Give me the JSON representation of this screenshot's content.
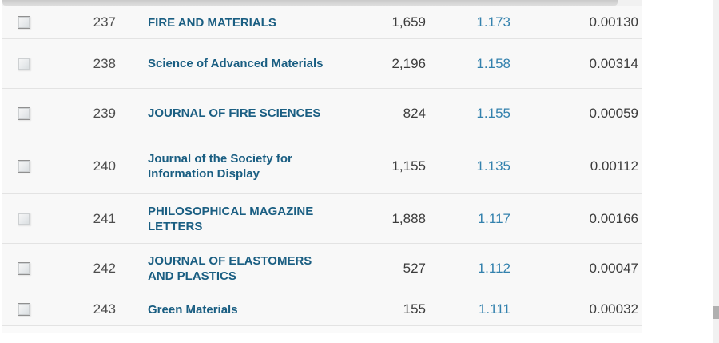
{
  "colors": {
    "title_link": "#1a5e82",
    "impact_link": "#3381ad",
    "row_bg": "#f8f8f8",
    "row_border": "#e3e3e3",
    "value_text": "#3c3c3c",
    "rank_text": "#4d4d4d",
    "scrollbar_track": "#f1f1f1",
    "scrollbar_thumb": "#b0b0b0"
  },
  "journal_table": {
    "rows": [
      {
        "rank": "237",
        "checked": false,
        "title": "FIRE AND MATERIALS",
        "total_cites": "1,659",
        "impact_factor": "1.173",
        "eigenfactor": "0.00130"
      },
      {
        "rank": "238",
        "checked": false,
        "title": "Science of Advanced Materials",
        "total_cites": "2,196",
        "impact_factor": "1.158",
        "eigenfactor": "0.00314"
      },
      {
        "rank": "239",
        "checked": false,
        "title": "JOURNAL OF FIRE SCIENCES",
        "total_cites": "824",
        "impact_factor": "1.155",
        "eigenfactor": "0.00059"
      },
      {
        "rank": "240",
        "checked": false,
        "title": "Journal of the Society for Information Display",
        "total_cites": "1,155",
        "impact_factor": "1.135",
        "eigenfactor": "0.00112"
      },
      {
        "rank": "241",
        "checked": false,
        "title": "PHILOSOPHICAL MAGAZINE LETTERS",
        "total_cites": "1,888",
        "impact_factor": "1.117",
        "eigenfactor": "0.00166"
      },
      {
        "rank": "242",
        "checked": false,
        "title": "JOURNAL OF ELASTOMERS AND PLASTICS",
        "total_cites": "527",
        "impact_factor": "1.112",
        "eigenfactor": "0.00047"
      },
      {
        "rank": "243",
        "checked": false,
        "title": "Green Materials",
        "total_cites": "155",
        "impact_factor": "1.111",
        "eigenfactor": "0.00032"
      }
    ]
  }
}
